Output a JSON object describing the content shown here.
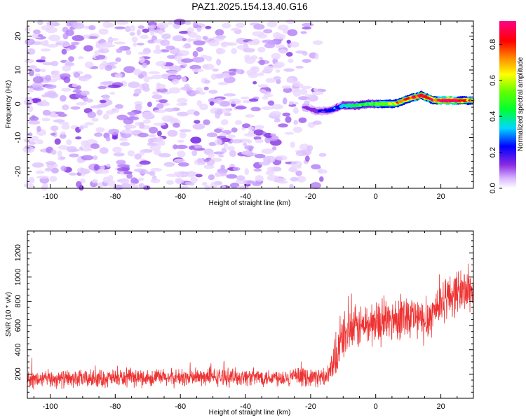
{
  "title": "PAZ1.2025.154.13.40.G16",
  "chart_data": [
    {
      "type": "heatmap",
      "xlabel": "Height of straight line (km)",
      "ylabel": "Frequency (Hz)",
      "xlim": [
        -107,
        30
      ],
      "ylim": [
        -25,
        24.5
      ],
      "x_ticks": [
        -100,
        -80,
        -60,
        -40,
        -20,
        0,
        20
      ],
      "y_ticks": [
        -20,
        -10,
        0,
        10,
        20
      ],
      "colorbar": {
        "label": "Normalized spectral amplitude",
        "range": [
          0,
          0.93
        ],
        "ticks": [
          0.0,
          0.2,
          0.4,
          0.6,
          0.8
        ],
        "colormap": "rainbow (purple-blue-cyan-green-yellow-orange-red-magenta)"
      },
      "ridge": {
        "x": [
          -22,
          -18,
          -14,
          -10,
          -6,
          -2,
          2,
          6,
          10,
          14,
          18,
          22,
          26,
          30
        ],
        "frequency": [
          -1.0,
          -2.2,
          -2.0,
          -0.5,
          -0.5,
          0.0,
          0.0,
          0.0,
          1.5,
          2.5,
          1.0,
          1.0,
          1.0,
          1.0
        ],
        "amplitude": [
          0.1,
          0.15,
          0.2,
          0.3,
          0.35,
          0.4,
          0.45,
          0.5,
          0.6,
          0.7,
          0.6,
          0.85,
          0.7,
          0.5
        ]
      },
      "noise_region_x": [
        -107,
        -16
      ]
    },
    {
      "type": "line",
      "xlabel": "Height of straight line (km)",
      "ylabel": "SNR (10 * v/v)",
      "xlim": [
        -107,
        30
      ],
      "ylim": [
        0,
        1380
      ],
      "x_ticks": [
        -100,
        -80,
        -60,
        -40,
        -20,
        0,
        20
      ],
      "y_ticks": [
        200,
        400,
        600,
        800,
        1000,
        1200
      ],
      "color": "#ee3333",
      "series": [
        {
          "x": [
            -107,
            -100,
            -90,
            -80,
            -70,
            -60,
            -50,
            -40,
            -30,
            -20,
            -15,
            -13,
            -10,
            -5,
            0,
            5,
            10,
            15,
            20,
            25,
            30
          ],
          "values": [
            150,
            160,
            160,
            165,
            170,
            170,
            175,
            175,
            175,
            175,
            170,
            260,
            520,
            590,
            620,
            650,
            700,
            620,
            800,
            880,
            900
          ]
        }
      ]
    }
  ]
}
